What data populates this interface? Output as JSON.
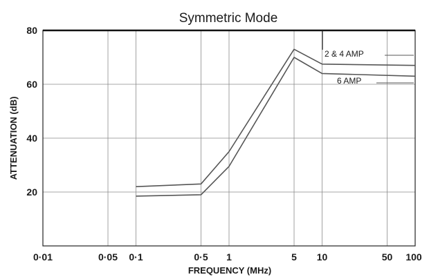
{
  "chart_data": {
    "type": "line",
    "title": "Symmetric Mode",
    "xlabel": "FREQUENCY (MHz)",
    "ylabel": "ATTENUATION (dB)",
    "x_scale": "log",
    "xlim": [
      0.01,
      100
    ],
    "ylim": [
      0,
      80
    ],
    "x_ticks": [
      {
        "value": 0.01,
        "label": "0·01"
      },
      {
        "value": 0.05,
        "label": "0·05"
      },
      {
        "value": 0.1,
        "label": "0·1"
      },
      {
        "value": 0.5,
        "label": "0·5"
      },
      {
        "value": 1,
        "label": "1"
      },
      {
        "value": 5,
        "label": "5"
      },
      {
        "value": 10,
        "label": "10"
      },
      {
        "value": 50,
        "label": "50"
      },
      {
        "value": 100,
        "label": "100"
      }
    ],
    "x_grid": [
      0.01,
      0.05,
      0.1,
      0.5,
      1,
      5,
      10,
      50,
      100
    ],
    "y_ticks": [
      20,
      40,
      60,
      80
    ],
    "y_grid": [
      20,
      40,
      60,
      80
    ],
    "grid": true,
    "series": [
      {
        "name": "2 & 4 AMP",
        "points": [
          [
            0.1,
            22
          ],
          [
            0.5,
            23
          ],
          [
            1,
            35
          ],
          [
            5,
            73
          ],
          [
            10,
            67.5
          ],
          [
            100,
            67
          ]
        ]
      },
      {
        "name": "6 AMP",
        "points": [
          [
            0.1,
            18.5
          ],
          [
            0.5,
            19
          ],
          [
            1,
            29.5
          ],
          [
            5,
            70
          ],
          [
            10,
            64
          ],
          [
            100,
            63
          ]
        ]
      }
    ]
  }
}
